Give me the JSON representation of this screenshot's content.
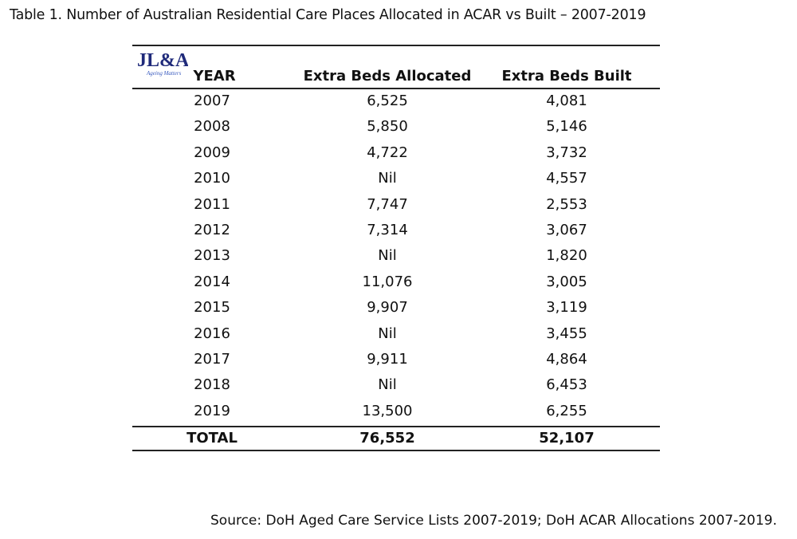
{
  "title": "Table 1. Number of Australian Residential Care Places Allocated in ACAR vs Built – 2007-2019",
  "logo": {
    "text": "JL&A",
    "tagline": "Ageing Matters"
  },
  "headers": [
    "YEAR",
    "Extra Beds Allocated",
    "Extra Beds Built"
  ],
  "rows": [
    [
      "2007",
      "6,525",
      "4,081"
    ],
    [
      "2008",
      "5,850",
      "5,146"
    ],
    [
      "2009",
      "4,722",
      "3,732"
    ],
    [
      "2010",
      "Nil",
      "4,557"
    ],
    [
      "2011",
      "7,747",
      "2,553"
    ],
    [
      "2012",
      "7,314",
      "3,067"
    ],
    [
      "2013",
      "Nil",
      "1,820"
    ],
    [
      "2014",
      "11,076",
      "3,005"
    ],
    [
      "2015",
      "9,907",
      "3,119"
    ],
    [
      "2016",
      "Nil",
      "3,455"
    ],
    [
      "2017",
      "9,911",
      "4,864"
    ],
    [
      "2018",
      "Nil",
      "6,453"
    ],
    [
      "2019",
      "13,500",
      "6,255"
    ]
  ],
  "total": [
    "TOTAL",
    "76,552",
    "52,107"
  ],
  "source": "Source: DoH Aged Care Service Lists 2007-2019; DoH ACAR Allocations 2007-2019."
}
